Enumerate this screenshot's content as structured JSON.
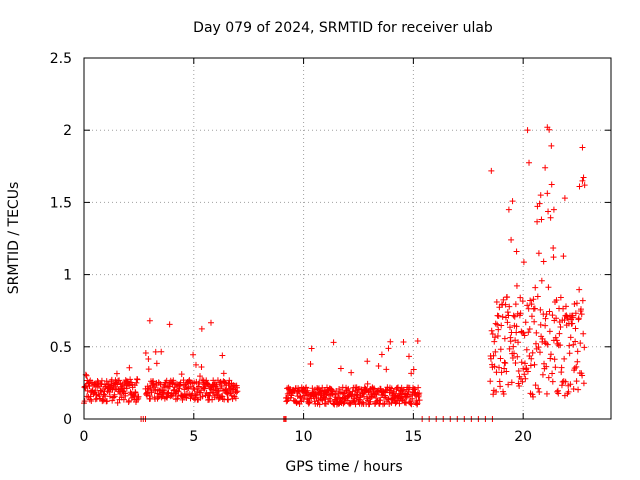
{
  "chart_data": {
    "type": "scatter",
    "title": "Day 079 of 2024, SRMTID for receiver ulab",
    "xlabel": "GPS time / hours",
    "ylabel": "SRMTID / TECUs",
    "xlim": [
      0,
      24
    ],
    "ylim": [
      0,
      2.5
    ],
    "x_ticks": [
      0,
      5,
      10,
      15,
      20
    ],
    "x_tick_labels": [
      "0",
      "5",
      "10",
      "15",
      "20"
    ],
    "y_ticks": [
      0,
      0.5,
      1,
      1.5,
      2,
      2.5
    ],
    "y_tick_labels": [
      "0",
      "0.5",
      "1",
      "1.5",
      "2",
      "2.5"
    ],
    "grid": true,
    "marker": "+",
    "series": [
      {
        "name": "SRMTID",
        "color": "#ff0000",
        "segments": [
          {
            "x_start": 0.0,
            "x_end": 2.5,
            "base": 0.19,
            "spread": 0.08,
            "spike_prob": 0.05,
            "spike_max": 0.37
          },
          {
            "x_start": 2.6,
            "x_end": 2.8,
            "base": 0.0,
            "spread": 0.0,
            "spike_prob": 0,
            "spike_max": 0
          },
          {
            "x_start": 2.8,
            "x_end": 7.0,
            "base": 0.2,
            "spread": 0.07,
            "spike_prob": 0.05,
            "spike_max": 0.68
          },
          {
            "x_start": 9.1,
            "x_end": 9.2,
            "base": 0.0,
            "spread": 0.0,
            "spike_prob": 0,
            "spike_max": 0
          },
          {
            "x_start": 9.2,
            "x_end": 15.3,
            "base": 0.16,
            "spread": 0.06,
            "spike_prob": 0.04,
            "spike_max": 0.54
          },
          {
            "x_start": 15.4,
            "x_end": 18.6,
            "base": 0.0,
            "spread": 0.0,
            "spike_prob": 0,
            "spike_max": 0
          },
          {
            "x_start": 18.5,
            "x_end": 22.8,
            "base": 0.5,
            "spread": 0.35,
            "spike_prob": 0.12,
            "spike_max": 2.02
          }
        ],
        "notable_points": [
          {
            "x": 3.0,
            "y": 0.68
          },
          {
            "x": 6.3,
            "y": 0.44
          },
          {
            "x": 12.9,
            "y": 0.4
          },
          {
            "x": 15.2,
            "y": 0.54
          },
          {
            "x": 19.7,
            "y": 1.16
          },
          {
            "x": 20.8,
            "y": 1.55
          },
          {
            "x": 21.0,
            "y": 1.74
          },
          {
            "x": 21.1,
            "y": 2.02
          },
          {
            "x": 21.4,
            "y": 1.45
          },
          {
            "x": 21.9,
            "y": 1.53
          },
          {
            "x": 22.7,
            "y": 1.88
          },
          {
            "x": 22.8,
            "y": 1.62
          }
        ]
      }
    ]
  }
}
